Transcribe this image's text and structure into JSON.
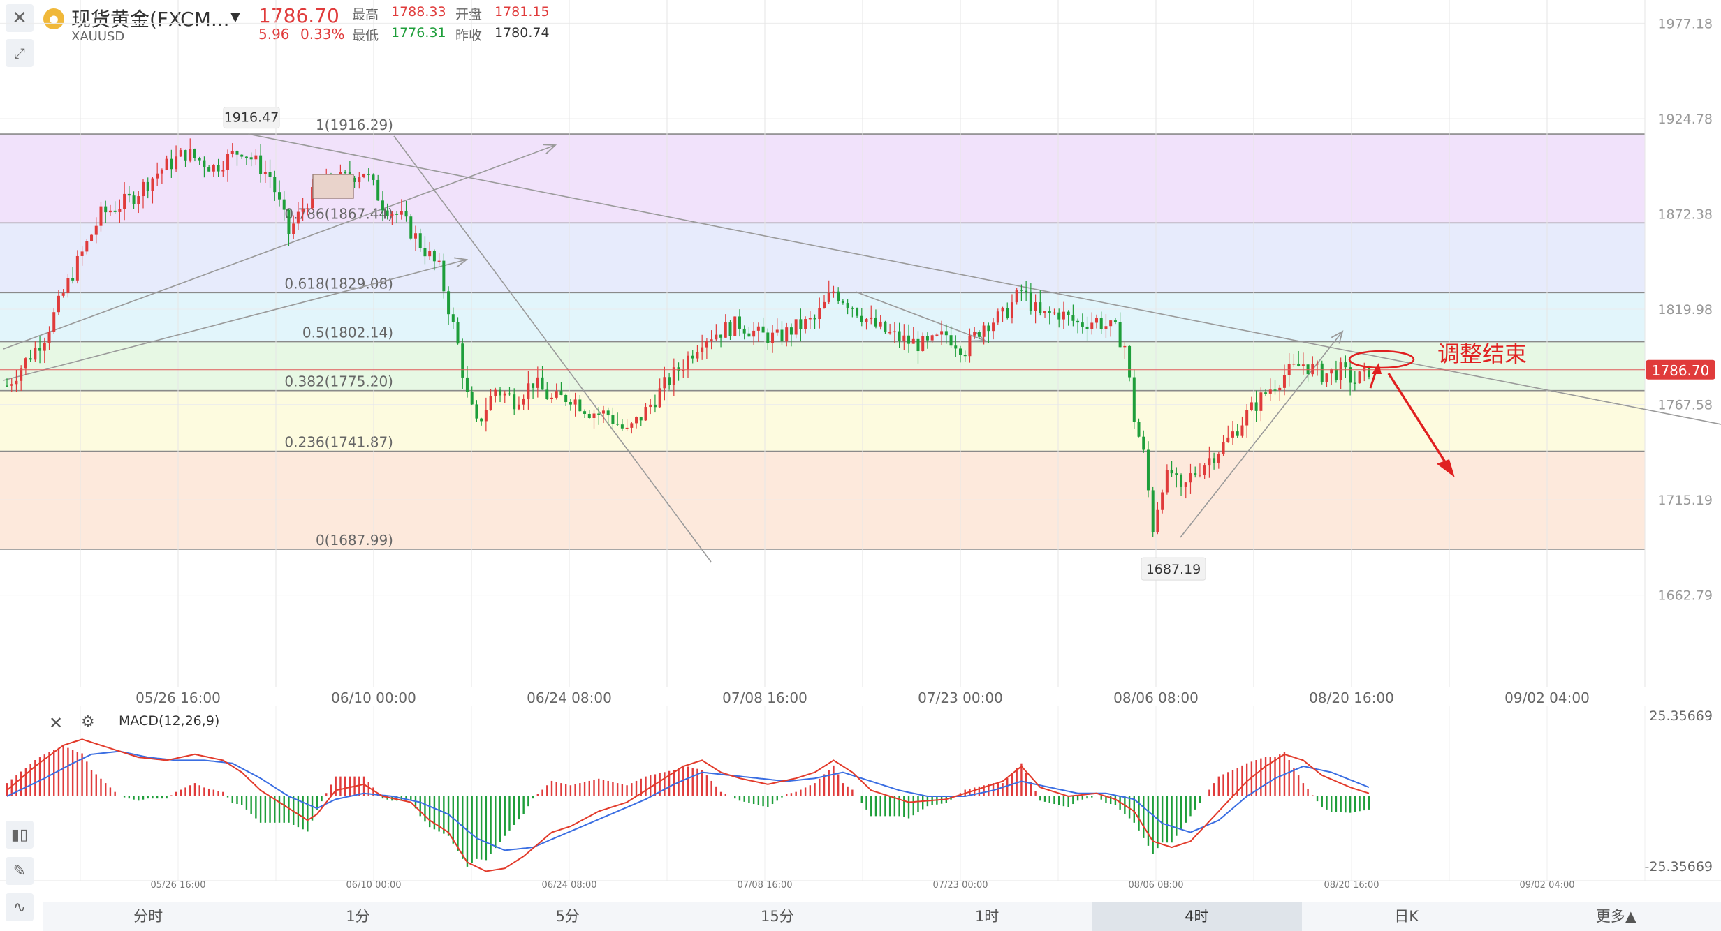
{
  "header": {
    "name": "现货黄金(FXCM...",
    "symbol": "XAUUSD",
    "price": "1786.70",
    "change": "5.96",
    "change_pct": "0.33%",
    "high_label": "最高",
    "high": "1788.33",
    "open_label": "开盘",
    "open": "1781.15",
    "low_label": "最低",
    "low": "1776.31",
    "prev_label": "昨收",
    "prev": "1780.74",
    "up_color": "#e03b3b",
    "down_color": "#1e9e3a"
  },
  "chart_data": [
    {
      "type": "candlestick",
      "y_ticks": [
        "1977.18",
        "1924.78",
        "1872.38",
        "1819.98",
        "1767.58",
        "1715.19",
        "1662.79"
      ],
      "ylim": [
        1612,
        1990
      ],
      "x_ticks": [
        "05/26 16:00",
        "06/10 00:00",
        "06/24 08:00",
        "07/08 16:00",
        "07/23 00:00",
        "08/06 08:00",
        "08/20 16:00",
        "09/02 04:00"
      ],
      "current_price": "1786.70",
      "annotations": {
        "swing_high": "1916.47",
        "swing_low": "1687.19",
        "note": "调整结束"
      },
      "fib_levels": [
        {
          "label": "1(1916.29)",
          "value": 1916.29,
          "color": "#f1e2fb"
        },
        {
          "label": "0.786(1867.44)",
          "value": 1867.44,
          "color": "#e7ebfc"
        },
        {
          "label": "0.618(1829.08)",
          "value": 1829.08,
          "color": "#e2f5fb"
        },
        {
          "label": "0.5(1802.14)",
          "value": 1802.14,
          "color": "#e7f8e4"
        },
        {
          "label": "0.382(1775.20)",
          "value": 1775.2,
          "color": "#fdfbdf"
        },
        {
          "label": "0.236(1741.87)",
          "value": 1741.87,
          "color": "#fde9dc"
        },
        {
          "label": "0(1687.99)",
          "value": 1687.99,
          "color": null
        }
      ],
      "price_path": [
        [
          0,
          1778
        ],
        [
          8,
          1805
        ],
        [
          14,
          1840
        ],
        [
          20,
          1872
        ],
        [
          26,
          1880
        ],
        [
          32,
          1895
        ],
        [
          38,
          1906
        ],
        [
          44,
          1898
        ],
        [
          50,
          1908
        ],
        [
          56,
          1893
        ],
        [
          60,
          1862
        ],
        [
          64,
          1880
        ],
        [
          68,
          1889
        ],
        [
          72,
          1892
        ],
        [
          76,
          1896
        ],
        [
          80,
          1878
        ],
        [
          84,
          1870
        ],
        [
          88,
          1856
        ],
        [
          92,
          1842
        ],
        [
          96,
          1800
        ],
        [
          98,
          1772
        ],
        [
          100,
          1756
        ],
        [
          104,
          1776
        ],
        [
          108,
          1770
        ],
        [
          112,
          1780
        ],
        [
          116,
          1770
        ],
        [
          120,
          1772
        ],
        [
          124,
          1764
        ],
        [
          128,
          1762
        ],
        [
          132,
          1752
        ],
        [
          136,
          1764
        ],
        [
          140,
          1778
        ],
        [
          144,
          1790
        ],
        [
          148,
          1804
        ],
        [
          152,
          1808
        ],
        [
          156,
          1812
        ],
        [
          160,
          1806
        ],
        [
          164,
          1804
        ],
        [
          168,
          1810
        ],
        [
          172,
          1814
        ],
        [
          176,
          1830
        ],
        [
          180,
          1822
        ],
        [
          184,
          1812
        ],
        [
          188,
          1806
        ],
        [
          192,
          1802
        ],
        [
          196,
          1800
        ],
        [
          200,
          1806
        ],
        [
          204,
          1798
        ],
        [
          208,
          1812
        ],
        [
          212,
          1816
        ],
        [
          216,
          1830
        ],
        [
          220,
          1816
        ],
        [
          224,
          1818
        ],
        [
          228,
          1812
        ],
        [
          232,
          1814
        ],
        [
          236,
          1808
        ],
        [
          238,
          1800
        ],
        [
          240,
          1760
        ],
        [
          242,
          1740
        ],
        [
          244,
          1700
        ],
        [
          246,
          1724
        ],
        [
          248,
          1730
        ],
        [
          250,
          1718
        ],
        [
          252,
          1728
        ],
        [
          256,
          1738
        ],
        [
          260,
          1748
        ],
        [
          264,
          1762
        ],
        [
          268,
          1774
        ],
        [
          272,
          1784
        ],
        [
          276,
          1790
        ],
        [
          280,
          1784
        ],
        [
          284,
          1786
        ],
        [
          287,
          1780
        ],
        [
          290,
          1786.7
        ]
      ],
      "period_range": [
        0,
        290
      ]
    },
    {
      "type": "macd",
      "title": "MACD(12,26,9)",
      "y_top": "25.35669",
      "y_bottom": "-25.35669",
      "ylim": [
        -25.35669,
        25.35669
      ],
      "x_ticks": [
        "05/26 16:00",
        "06/10 00:00",
        "06/24 08:00",
        "07/08 16:00",
        "07/23 00:00",
        "08/06 08:00",
        "08/20 16:00",
        "09/02 04:00"
      ],
      "dif_path": [
        [
          0,
          2
        ],
        [
          6,
          10
        ],
        [
          12,
          17
        ],
        [
          16,
          19
        ],
        [
          22,
          16
        ],
        [
          28,
          13
        ],
        [
          34,
          12
        ],
        [
          40,
          14
        ],
        [
          46,
          12
        ],
        [
          50,
          8
        ],
        [
          54,
          2
        ],
        [
          60,
          -4
        ],
        [
          64,
          -8
        ],
        [
          66,
          -6
        ],
        [
          70,
          2
        ],
        [
          76,
          4
        ],
        [
          80,
          0
        ],
        [
          86,
          -2
        ],
        [
          90,
          -8
        ],
        [
          94,
          -12
        ],
        [
          98,
          -22
        ],
        [
          102,
          -25
        ],
        [
          106,
          -24
        ],
        [
          110,
          -20
        ],
        [
          116,
          -12
        ],
        [
          120,
          -10
        ],
        [
          126,
          -5
        ],
        [
          132,
          -2
        ],
        [
          138,
          4
        ],
        [
          144,
          10
        ],
        [
          148,
          12
        ],
        [
          152,
          8
        ],
        [
          156,
          6
        ],
        [
          162,
          4
        ],
        [
          168,
          6
        ],
        [
          172,
          8
        ],
        [
          176,
          12
        ],
        [
          180,
          8
        ],
        [
          184,
          2
        ],
        [
          188,
          0
        ],
        [
          192,
          -2
        ],
        [
          200,
          -1
        ],
        [
          206,
          2
        ],
        [
          212,
          5
        ],
        [
          216,
          10
        ],
        [
          220,
          3
        ],
        [
          226,
          0
        ],
        [
          232,
          1
        ],
        [
          236,
          -1
        ],
        [
          240,
          -5
        ],
        [
          244,
          -15
        ],
        [
          248,
          -17
        ],
        [
          252,
          -15
        ],
        [
          258,
          -5
        ],
        [
          264,
          5
        ],
        [
          268,
          10
        ],
        [
          272,
          14
        ],
        [
          276,
          12
        ],
        [
          280,
          7
        ],
        [
          286,
          3
        ],
        [
          290,
          1
        ]
      ],
      "dea_path": [
        [
          0,
          0
        ],
        [
          8,
          6
        ],
        [
          14,
          11
        ],
        [
          18,
          14
        ],
        [
          24,
          15
        ],
        [
          30,
          13
        ],
        [
          36,
          12
        ],
        [
          42,
          12
        ],
        [
          48,
          11
        ],
        [
          54,
          6
        ],
        [
          60,
          0
        ],
        [
          66,
          -4
        ],
        [
          70,
          -1
        ],
        [
          76,
          1
        ],
        [
          82,
          0
        ],
        [
          88,
          -2
        ],
        [
          94,
          -6
        ],
        [
          100,
          -14
        ],
        [
          106,
          -18
        ],
        [
          112,
          -17
        ],
        [
          118,
          -13
        ],
        [
          124,
          -9
        ],
        [
          130,
          -5
        ],
        [
          136,
          -1
        ],
        [
          142,
          4
        ],
        [
          148,
          8
        ],
        [
          154,
          7
        ],
        [
          160,
          6
        ],
        [
          166,
          5
        ],
        [
          172,
          6
        ],
        [
          178,
          8
        ],
        [
          184,
          5
        ],
        [
          190,
          2
        ],
        [
          196,
          0
        ],
        [
          204,
          0
        ],
        [
          210,
          2
        ],
        [
          216,
          5
        ],
        [
          222,
          3
        ],
        [
          228,
          1
        ],
        [
          234,
          1
        ],
        [
          240,
          -1
        ],
        [
          246,
          -9
        ],
        [
          252,
          -12
        ],
        [
          258,
          -8
        ],
        [
          264,
          0
        ],
        [
          270,
          6
        ],
        [
          276,
          10
        ],
        [
          282,
          8
        ],
        [
          290,
          3
        ]
      ],
      "dif_color": "#e23a2a",
      "dea_color": "#3a6ee2"
    }
  ],
  "periods": {
    "items": [
      "分时",
      "1分",
      "5分",
      "15分",
      "1时",
      "4时",
      "日K",
      "更多▲"
    ],
    "active": "4时"
  },
  "tools": {
    "close_icon": "close-icon",
    "draw_icon": "line-tool-icon",
    "settings_icon": "gear-icon"
  }
}
